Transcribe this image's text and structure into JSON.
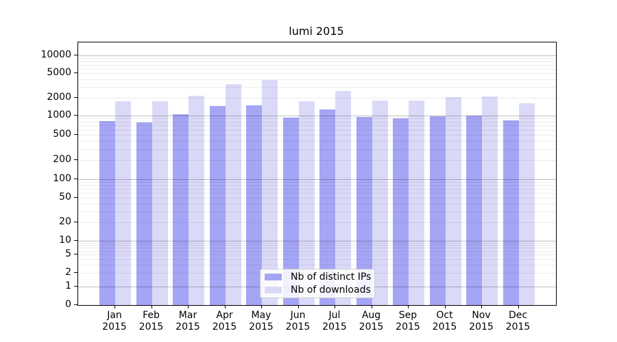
{
  "chart_data": {
    "type": "bar",
    "title": "lumi 2015",
    "categories": [
      "Jan 2015",
      "Feb 2015",
      "Mar 2015",
      "Apr 2015",
      "May 2015",
      "Jun 2015",
      "Jul 2015",
      "Aug 2015",
      "Sep 2015",
      "Oct 2015",
      "Nov 2015",
      "Dec 2015"
    ],
    "series": [
      {
        "name": "Nb of distinct IPs",
        "color": "#a5a5f5",
        "values": [
          830,
          780,
          1060,
          1450,
          1500,
          930,
          1270,
          960,
          910,
          980,
          1000,
          850
        ]
      },
      {
        "name": "Nb of downloads",
        "color": "#dadaf8",
        "values": [
          1750,
          1750,
          2150,
          3300,
          3850,
          1750,
          2550,
          1780,
          1780,
          2050,
          2100,
          1620
        ]
      }
    ],
    "xlabel": "",
    "ylabel": "",
    "yscale": "symlog",
    "ylim": [
      0,
      16000
    ],
    "yticks": [
      0,
      1,
      2,
      5,
      10,
      20,
      50,
      100,
      200,
      500,
      1000,
      2000,
      5000,
      10000
    ],
    "grid": true,
    "grid_minor": true,
    "legend_position": "lower center"
  },
  "colors": {
    "bar_distinct_ips": "#a5a5f5",
    "bar_downloads": "#dadaf8",
    "major_gridline": "#c0c0c0",
    "minor_gridline": "#ececec",
    "spine": "#000000",
    "background": "#ffffff"
  }
}
